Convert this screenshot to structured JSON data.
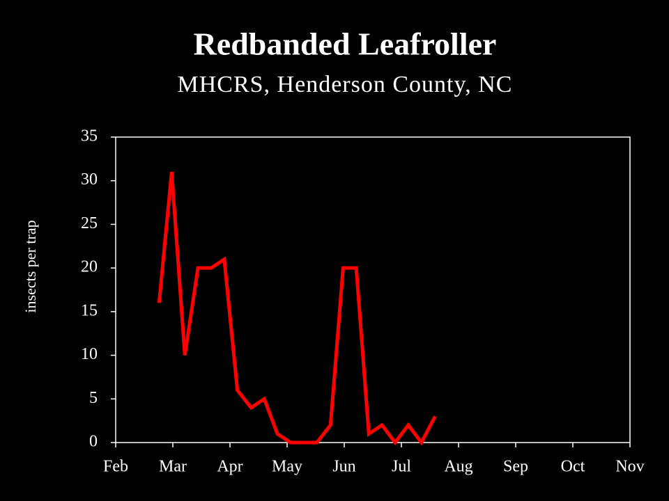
{
  "chart_data": {
    "type": "line",
    "title": "Redbanded Leafroller",
    "subtitle": "MHCRS, Henderson County, NC",
    "ylabel": "insects per trap",
    "x": [
      0.76,
      0.98,
      1.21,
      1.44,
      1.67,
      1.9,
      2.13,
      2.37,
      2.6,
      2.83,
      3.06,
      3.29,
      3.52,
      3.76,
      3.98,
      4.21,
      4.43,
      4.66,
      4.89,
      5.12,
      5.35,
      5.59
    ],
    "series": [
      {
        "color": "#ff0000",
        "values": [
          16,
          31,
          10,
          20,
          20,
          21,
          6,
          4,
          5,
          1,
          0,
          0,
          0,
          2,
          20,
          20,
          1,
          2,
          0,
          2,
          0,
          3
        ]
      }
    ],
    "xlim": [
      0,
      9
    ],
    "xticks": [
      {
        "value": 0,
        "label": "Feb"
      },
      {
        "value": 1,
        "label": "Mar"
      },
      {
        "value": 2,
        "label": "Apr"
      },
      {
        "value": 3,
        "label": "May"
      },
      {
        "value": 4,
        "label": "Jun"
      },
      {
        "value": 5,
        "label": "Jul"
      },
      {
        "value": 6,
        "label": "Aug"
      },
      {
        "value": 7,
        "label": "Sep"
      },
      {
        "value": 8,
        "label": "Oct"
      },
      {
        "value": 9,
        "label": "Nov"
      }
    ],
    "ylim": [
      0,
      35
    ],
    "yticks": [
      0,
      5,
      10,
      15,
      20,
      25,
      30,
      35
    ]
  }
}
